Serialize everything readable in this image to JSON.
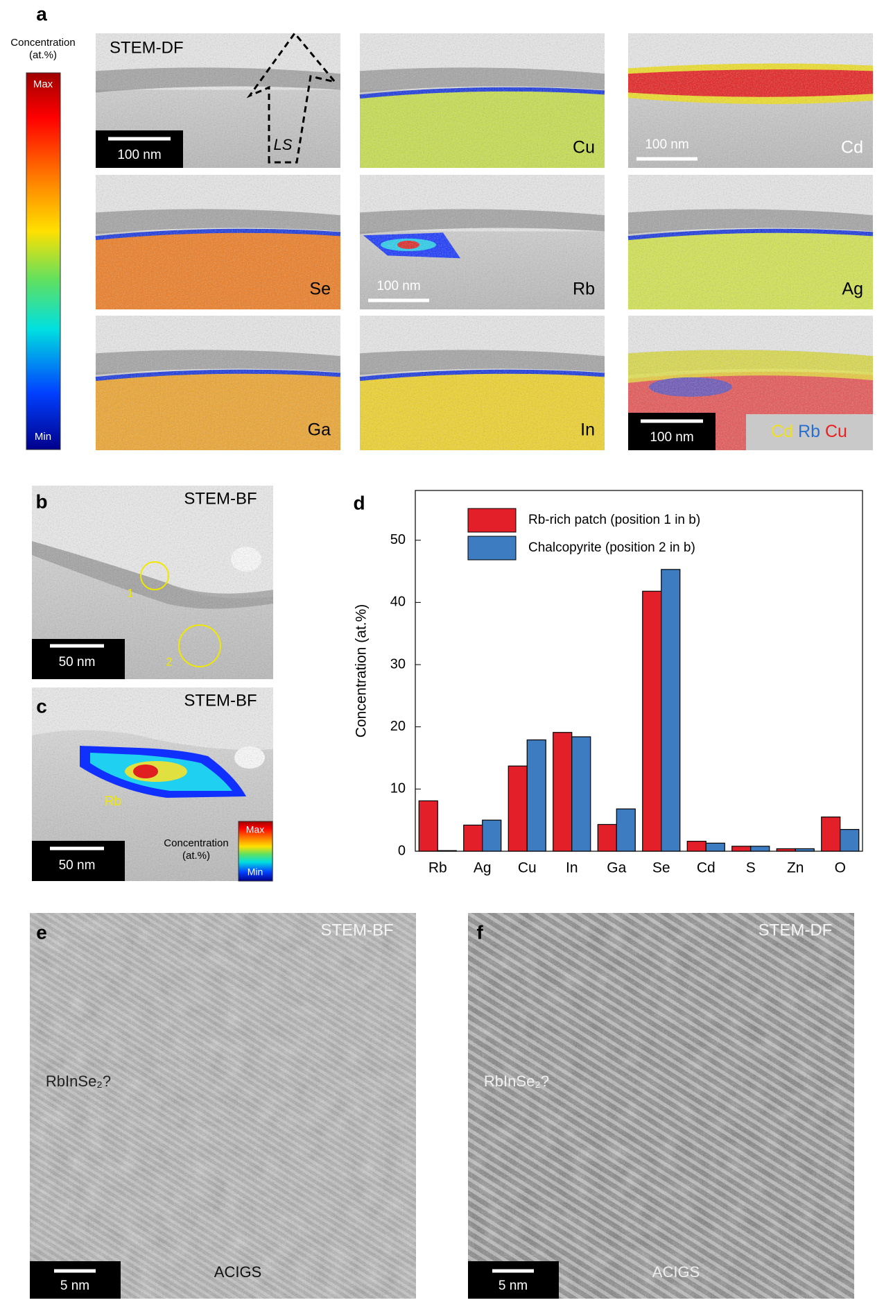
{
  "panel_a": {
    "letter": "a",
    "colorbar": {
      "label_lines": [
        "Concentration",
        "(at.%)"
      ],
      "max": "Max",
      "min": "Min"
    },
    "maps": [
      {
        "label": "STEM-DF",
        "scale_bar": "100 nm",
        "arrow_label": "LS"
      },
      {
        "label": "Cu"
      },
      {
        "label": "Cd",
        "scale_bar": "100 nm"
      },
      {
        "label": "Se"
      },
      {
        "label": "Rb",
        "scale_bar": "100 nm"
      },
      {
        "label": "Ag"
      },
      {
        "label": "Ga"
      },
      {
        "label": "In"
      },
      {
        "scale_bar": "100 nm",
        "overlay_legend": [
          "Cd",
          "Rb",
          "Cu"
        ]
      }
    ]
  },
  "panel_b": {
    "letter": "b",
    "label": "STEM-BF",
    "scale_bar": "50 nm",
    "positions": [
      "1",
      "2"
    ]
  },
  "panel_c": {
    "letter": "c",
    "label": "STEM-BF",
    "scale_bar": "50 nm",
    "element": "Rb",
    "colorbar": {
      "label_lines": [
        "Concentration",
        "(at.%)"
      ],
      "max": "Max",
      "min": "Min"
    }
  },
  "panel_d": {
    "letter": "d"
  },
  "chart_data": {
    "type": "bar",
    "y_label": "Concentration (at.%)",
    "categories": [
      "Rb",
      "Ag",
      "Cu",
      "In",
      "Ga",
      "Se",
      "Cd",
      "S",
      "Zn",
      "O"
    ],
    "series": [
      {
        "name": "Rb-rich patch (position 1 in b)",
        "color": "#e3202a",
        "values": [
          8.1,
          4.2,
          13.7,
          19.1,
          4.3,
          41.8,
          1.6,
          0.8,
          0.4,
          5.5
        ]
      },
      {
        "name": "Chalcopyrite (position 2 in b)",
        "color": "#3d7cc0",
        "values": [
          0.1,
          5.0,
          17.9,
          18.4,
          6.8,
          45.3,
          1.3,
          0.8,
          0.4,
          3.5
        ]
      }
    ],
    "ylim": [
      0,
      58
    ],
    "yticks": [
      0,
      10,
      20,
      30,
      40,
      50
    ],
    "legend": "top-left"
  },
  "panel_e": {
    "letter": "e",
    "label": "STEM-BF",
    "phase": "RbInSe₂?",
    "scale_bar": "5 nm",
    "region": "ACIGS"
  },
  "panel_f": {
    "letter": "f",
    "label": "STEM-DF",
    "phase": "RbInSe₂?",
    "scale_bar": "5 nm",
    "region": "ACIGS"
  }
}
